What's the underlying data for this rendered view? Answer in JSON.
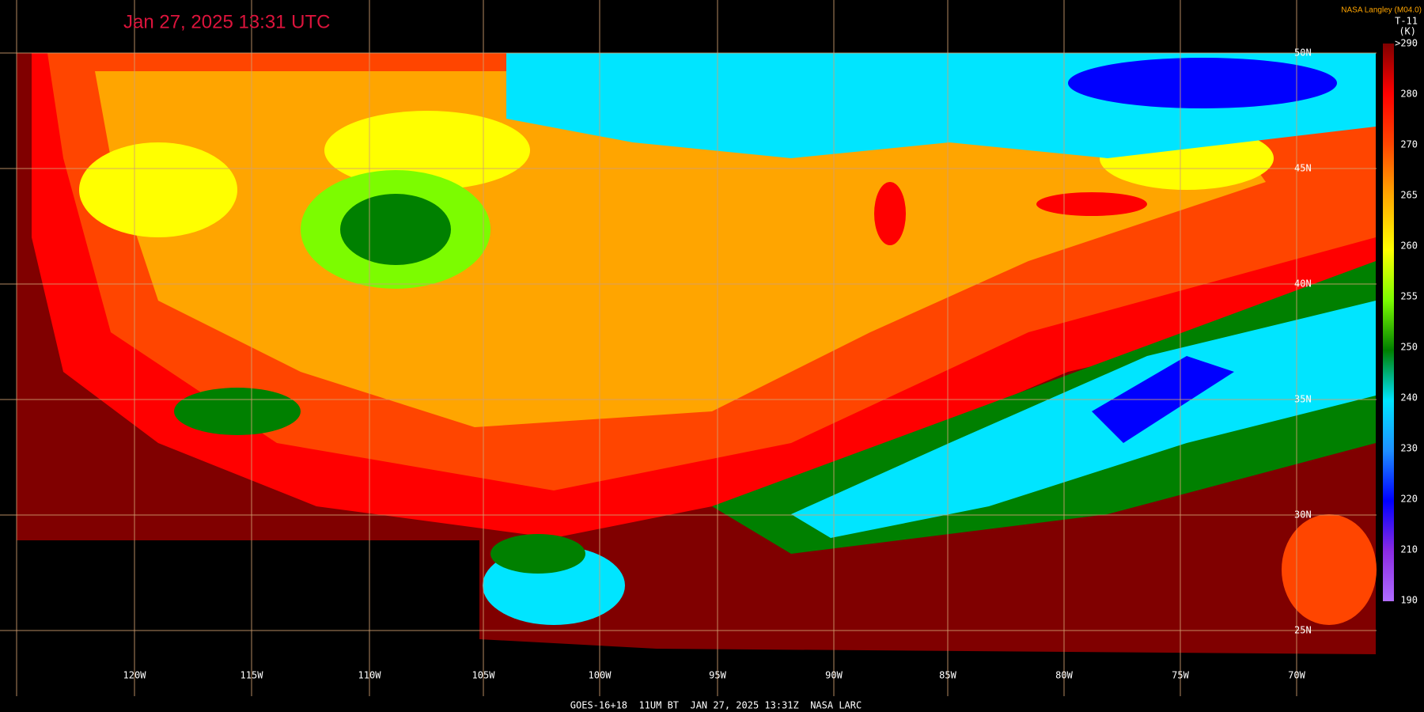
{
  "header": {
    "timestamp": "Jan 27, 2025 13:31 UTC",
    "credit": "NASA Langley (M04.0)",
    "channel": "T-11",
    "unit": "(K)"
  },
  "colorbar": {
    "labels": [
      ">290",
      "280",
      "270",
      "265",
      "260",
      "255",
      "250",
      "240",
      "230",
      "220",
      "210",
      "190"
    ]
  },
  "longitude_labels": [
    "120W",
    "115W",
    "110W",
    "105W",
    "100W",
    "95W",
    "90W",
    "85W",
    "80W",
    "75W",
    "70W"
  ],
  "latitude_labels": [
    "50N",
    "45N",
    "40N",
    "35N",
    "30N",
    "25N"
  ],
  "footer": "GOES-16+18  11UM BT  JAN 27, 2025 13:31Z  NASA LARC"
}
